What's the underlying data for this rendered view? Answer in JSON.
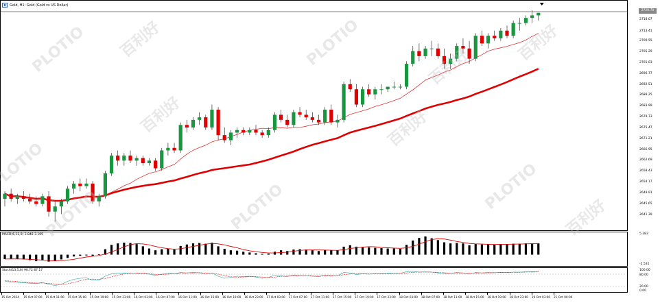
{
  "header": {
    "symbol_text": "Gold, H1:  Gold (Gold vs US Dollar)"
  },
  "colors": {
    "bull": "#1a9641",
    "bear": "#e00000",
    "ma_fast": "#e03030",
    "ma_slow": "#e00000",
    "macd_hist": "#000000",
    "macd_signal": "#e00000",
    "stoch_main": "#20a0a0",
    "stoch_signal": "#e00000"
  },
  "price_scale": {
    "current_price": "2720.70",
    "ticks": [
      "2718.07",
      "2713.41",
      "2709.55",
      "2705.29",
      "2701.03",
      "2696.77",
      "2692.51",
      "2688.25",
      "2683.99",
      "2679.73",
      "2675.47",
      "2671.21",
      "2666.95",
      "2662.69",
      "2658.43",
      "2654.17",
      "2649.91",
      "2645.65",
      "2641.39"
    ]
  },
  "macd": {
    "label": "MACD(6,12,9) 3.848 3.109",
    "scale_top": "5.383",
    "scale_bottom": "-2.531"
  },
  "stoch": {
    "label": "Stoch(13,5,6) 90.72 87.17",
    "scale_ticks": [
      "100.00",
      "80.00",
      "20.00",
      "0.00"
    ]
  },
  "time_axis": {
    "labels": [
      "15 Oct 2024",
      "15 Oct 07:00",
      "15 Oct 11:00",
      "15 Oct 15:00",
      "15 Oct 19:00",
      "15 Oct 23:00",
      "16 Oct 03:00",
      "16 Oct 07:00",
      "16 Oct 11:00",
      "16 Oct 15:00",
      "16 Oct 19:00",
      "16 Oct 23:00",
      "17 Oct 03:00",
      "17 Oct 07:00",
      "17 Oct 11:00",
      "17 Oct 15:00",
      "17 Oct 19:00",
      "17 Oct 23:00",
      "18 Oct 03:00",
      "18 Oct 07:00",
      "18 Oct 11:00",
      "18 Oct 15:00",
      "18 Oct 19:00",
      "18 Oct 23:00",
      "19 Oct 03:00",
      "21 Oct 00:00"
    ]
  },
  "watermark": {
    "brand": "PLOTIO",
    "cn": "百利好"
  },
  "chart_data": {
    "type": "candlestick",
    "ylim": [
      2637.0,
      2722.0
    ],
    "candles": [
      [
        2648,
        2651,
        2645,
        2650
      ],
      [
        2650,
        2652,
        2647,
        2648
      ],
      [
        2648,
        2650,
        2646,
        2649
      ],
      [
        2649,
        2651,
        2647,
        2648
      ],
      [
        2648,
        2650,
        2646,
        2647
      ],
      [
        2647,
        2649,
        2645,
        2646
      ],
      [
        2646,
        2650,
        2645,
        2649
      ],
      [
        2649,
        2651,
        2641,
        2643
      ],
      [
        2643,
        2647,
        2639,
        2645
      ],
      [
        2645,
        2648,
        2642,
        2647
      ],
      [
        2647,
        2653,
        2646,
        2652
      ],
      [
        2652,
        2655,
        2650,
        2654
      ],
      [
        2654,
        2656,
        2651,
        2653
      ],
      [
        2653,
        2656,
        2652,
        2654
      ],
      [
        2654,
        2655,
        2646,
        2647
      ],
      [
        2647,
        2650,
        2645,
        2649
      ],
      [
        2649,
        2659,
        2648,
        2658
      ],
      [
        2658,
        2666,
        2657,
        2665
      ],
      [
        2665,
        2667,
        2661,
        2663
      ],
      [
        2663,
        2666,
        2661,
        2665
      ],
      [
        2665,
        2667,
        2662,
        2663
      ],
      [
        2663,
        2665,
        2661,
        2664
      ],
      [
        2664,
        2665,
        2661,
        2662
      ],
      [
        2662,
        2664,
        2661,
        2663
      ],
      [
        2663,
        2664,
        2659,
        2660
      ],
      [
        2660,
        2668,
        2659,
        2667
      ],
      [
        2667,
        2670,
        2665,
        2668
      ],
      [
        2668,
        2670,
        2666,
        2667
      ],
      [
        2667,
        2678,
        2666,
        2677
      ],
      [
        2677,
        2679,
        2674,
        2676
      ],
      [
        2676,
        2680,
        2675,
        2679
      ],
      [
        2679,
        2682,
        2677,
        2680
      ],
      [
        2680,
        2681,
        2675,
        2676
      ],
      [
        2676,
        2685,
        2675,
        2683
      ],
      [
        2683,
        2684,
        2671,
        2673
      ],
      [
        2673,
        2676,
        2670,
        2671
      ],
      [
        2671,
        2675,
        2669,
        2674
      ],
      [
        2674,
        2676,
        2672,
        2675
      ],
      [
        2675,
        2676,
        2673,
        2674
      ],
      [
        2674,
        2676,
        2673,
        2675
      ],
      [
        2675,
        2677,
        2673,
        2674
      ],
      [
        2674,
        2675,
        2672,
        2673
      ],
      [
        2673,
        2676,
        2672,
        2675
      ],
      [
        2675,
        2682,
        2674,
        2681
      ],
      [
        2681,
        2683,
        2678,
        2679
      ],
      [
        2679,
        2681,
        2676,
        2677
      ],
      [
        2677,
        2683,
        2676,
        2682
      ],
      [
        2682,
        2684,
        2680,
        2681
      ],
      [
        2681,
        2683,
        2679,
        2680
      ],
      [
        2680,
        2682,
        2678,
        2679
      ],
      [
        2679,
        2681,
        2677,
        2678
      ],
      [
        2678,
        2684,
        2677,
        2683
      ],
      [
        2683,
        2685,
        2677,
        2678
      ],
      [
        2678,
        2681,
        2676,
        2679
      ],
      [
        2679,
        2694,
        2678,
        2693
      ],
      [
        2693,
        2695,
        2690,
        2691
      ],
      [
        2691,
        2693,
        2684,
        2685
      ],
      [
        2685,
        2692,
        2684,
        2691
      ],
      [
        2691,
        2693,
        2688,
        2689
      ],
      [
        2689,
        2692,
        2687,
        2691
      ],
      [
        2691,
        2693,
        2689,
        2691
      ],
      [
        2691,
        2692,
        2690,
        2692
      ],
      [
        2692,
        2694,
        2691,
        2692
      ],
      [
        2692,
        2693,
        2691,
        2692
      ],
      [
        2692,
        2702,
        2691,
        2701
      ],
      [
        2701,
        2708,
        2700,
        2706
      ],
      [
        2706,
        2709,
        2702,
        2704
      ],
      [
        2704,
        2708,
        2703,
        2707
      ],
      [
        2707,
        2710,
        2704,
        2707
      ],
      [
        2707,
        2709,
        2703,
        2704
      ],
      [
        2704,
        2707,
        2699,
        2701
      ],
      [
        2701,
        2705,
        2699,
        2703
      ],
      [
        2703,
        2709,
        2702,
        2708
      ],
      [
        2708,
        2711,
        2705,
        2707
      ],
      [
        2707,
        2710,
        2701,
        2703
      ],
      [
        2703,
        2713,
        2702,
        2712
      ],
      [
        2712,
        2714,
        2708,
        2709
      ],
      [
        2709,
        2713,
        2707,
        2712
      ],
      [
        2712,
        2714,
        2710,
        2711
      ],
      [
        2711,
        2715,
        2710,
        2714
      ],
      [
        2714,
        2716,
        2711,
        2712
      ],
      [
        2712,
        2718,
        2711,
        2717
      ],
      [
        2717,
        2719,
        2714,
        2717
      ],
      [
        2717,
        2720,
        2716,
        2719
      ],
      [
        2719,
        2722,
        2717,
        2720
      ],
      [
        2720,
        2721,
        2718,
        2721
      ]
    ],
    "macd_hist": [
      -1.2,
      -1.1,
      -1.2,
      -1.3,
      -1.5,
      -1.8,
      -1.6,
      -1.9,
      -1.7,
      -1.3,
      -0.9,
      -0.5,
      -0.3,
      -0.2,
      -0.3,
      0.1,
      1.5,
      2.7,
      3.1,
      3.3,
      3.2,
      2.9,
      2.3,
      1.7,
      1.2,
      1.5,
      1.7,
      1.4,
      2.4,
      2.8,
      3.1,
      3.2,
      3.0,
      3.3,
      2.3,
      1.6,
      1.2,
      1.1,
      0.8,
      0.6,
      0.4,
      0.2,
      0.3,
      0.8,
      1.2,
      1.0,
      1.4,
      1.5,
      1.4,
      1.2,
      1.0,
      1.3,
      1.2,
      1.2,
      2.2,
      2.6,
      2.2,
      2.1,
      2.0,
      1.9,
      1.8,
      1.7,
      1.7,
      1.6,
      2.7,
      3.9,
      4.6,
      5.0,
      4.5,
      4.0,
      3.4,
      3.1,
      3.2,
      3.1,
      2.6,
      2.9,
      2.8,
      2.9,
      2.8,
      2.9,
      2.9,
      3.0,
      3.0,
      3.1,
      3.1,
      3.1
    ],
    "stoch_main": [
      45,
      42,
      40,
      38,
      36,
      34,
      40,
      30,
      25,
      30,
      45,
      55,
      60,
      62,
      50,
      52,
      70,
      82,
      84,
      86,
      85,
      84,
      82,
      80,
      74,
      80,
      84,
      82,
      88,
      86,
      88,
      87,
      80,
      86,
      70,
      60,
      65,
      70,
      68,
      70,
      66,
      60,
      64,
      75,
      72,
      68,
      76,
      74,
      72,
      70,
      68,
      76,
      74,
      72,
      88,
      86,
      78,
      82,
      80,
      82,
      82,
      84,
      84,
      84,
      92,
      94,
      90,
      91,
      90,
      86,
      82,
      84,
      88,
      86,
      80,
      88,
      86,
      88,
      87,
      89,
      88,
      90,
      90,
      91,
      92,
      91
    ],
    "stoch_signal": [
      48,
      46,
      44,
      41,
      39,
      37,
      37,
      35,
      32,
      30,
      33,
      40,
      48,
      55,
      56,
      55,
      59,
      67,
      75,
      81,
      84,
      85,
      84,
      82,
      79,
      78,
      80,
      82,
      84,
      86,
      86,
      87,
      85,
      84,
      80,
      73,
      67,
      65,
      66,
      68,
      68,
      66,
      64,
      66,
      69,
      71,
      72,
      73,
      73,
      72,
      70,
      71,
      72,
      73,
      77,
      81,
      83,
      82,
      81,
      81,
      81,
      82,
      83,
      84,
      86,
      89,
      90,
      90,
      90,
      89,
      87,
      85,
      85,
      86,
      85,
      85,
      86,
      86,
      87,
      88,
      88,
      89,
      89,
      90,
      90,
      91
    ]
  }
}
